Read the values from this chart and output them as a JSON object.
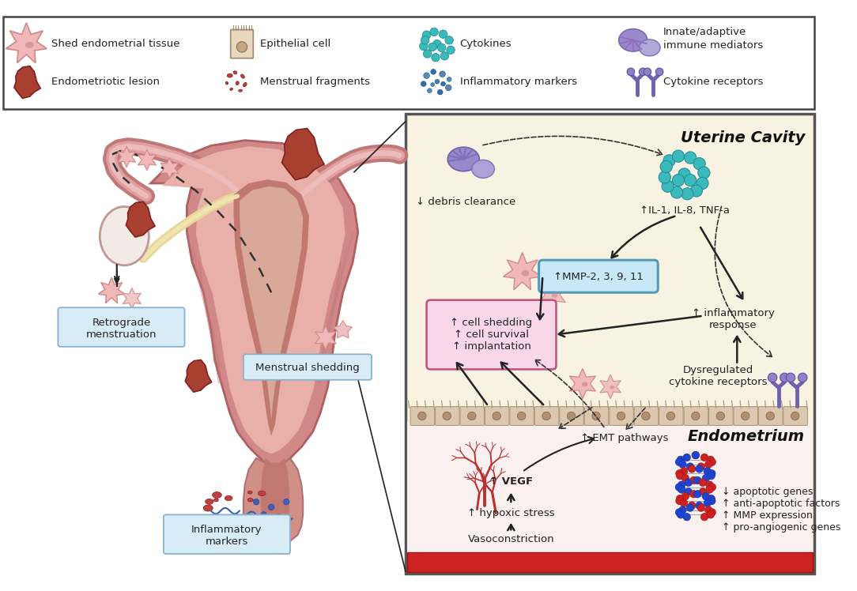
{
  "bg_color": "#ffffff",
  "legend_border_color": "#444444",
  "colors": {
    "uterus_dark": "#c07575",
    "uterus_mid": "#d99090",
    "uterus_light": "#ecc0b8",
    "uterus_inner_dark": "#b06060",
    "uterus_cavity": "#e8a8a0",
    "uterus_lining_light": "#f0c8c0",
    "cervix_dark": "#c07575",
    "ligament_yellow": "#e8d898",
    "lesion_dark": "#8b3520",
    "lesion_mid": "#a84030",
    "ovary_light": "#f5ece8",
    "ovary_border": "#c09090",
    "shed_pink": "#f0b8b8",
    "shed_border": "#d08080",
    "panel_bg": "#f5f0e0",
    "panel_border": "#555555",
    "blood_red": "#cc2222",
    "endometrium_cell": "#d8c0a8",
    "endometrium_border": "#b09878",
    "subendometrial_bg": "#faf0f0",
    "cytokine_teal": "#3ababa",
    "cytokine_border": "#208888",
    "immune_purple": "#8878c0",
    "immune_light": "#b0a8d8",
    "mmp_fill": "#c8e8f8",
    "mmp_border": "#5599bb",
    "cell_shed_fill": "#f8d8e8",
    "cell_shed_border": "#c05080",
    "label_box_fill": "#d8ecf8",
    "label_box_border": "#8ab0cc",
    "dna_red": "#cc2222",
    "dna_blue": "#2244cc",
    "vessel_red": "#b83030",
    "arrow_dark": "#222222",
    "receptor_purple": "#7060b8"
  },
  "labels": {
    "debris_clearance": "↓ debris clearance",
    "il_tnf": "↑IL-1, IL-8, TNF-a",
    "mmp": "↑MMP-2, 3, 9, 11",
    "inflammatory": "↑ inflammatory\nresponse",
    "cell_shedding": "↑ cell shedding\n↑ cell survival\n↑ implantation",
    "cytokine_receptors": "Dysregulated\ncytokine receptors",
    "emt": "↑ EMT pathways",
    "vegf": "↑ VEGF",
    "hypoxic": "↑ hypoxic stress",
    "vasoconstriction": "Vasoconstriction",
    "apoptotic": "↓ apoptotic genes\n↑ anti-apoptotic factors\n↑ MMP expression\n↑ pro-angiogenic genes",
    "retrograde": "Retrograde\nmenstruation",
    "menstrual_shedding": "Menstrual shedding",
    "inflammatory_markers": "Inflammatory\nmarkers",
    "uterine_cavity": "Uterine Cavity",
    "endometrium": "Endometrium"
  }
}
